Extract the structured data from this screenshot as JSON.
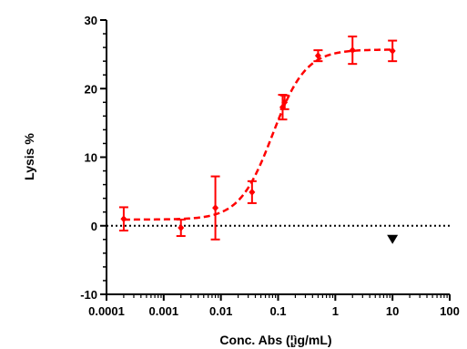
{
  "chart_data": {
    "type": "scatter",
    "xlabel": "Conc. Abs (¦̧ìg/mL)",
    "ylabel": "Lysis %",
    "x_scale": "log",
    "xlim": [
      0.0001,
      100
    ],
    "ylim": [
      -10,
      30
    ],
    "x_ticks": [
      {
        "value": 0.0001,
        "label": "0.0001"
      },
      {
        "value": 0.001,
        "label": "0.001"
      },
      {
        "value": 0.01,
        "label": "0.01"
      },
      {
        "value": 0.1,
        "label": "0.1"
      },
      {
        "value": 1,
        "label": "1"
      },
      {
        "value": 10,
        "label": "10"
      },
      {
        "value": 100,
        "label": "100"
      }
    ],
    "y_ticks": [
      {
        "value": -10,
        "label": "-10"
      },
      {
        "value": 0,
        "label": "0"
      },
      {
        "value": 10,
        "label": "10"
      },
      {
        "value": 20,
        "label": "20"
      },
      {
        "value": 30,
        "label": "30"
      }
    ],
    "grid": false,
    "legend": "none",
    "series": [
      {
        "color": "#ff0000",
        "marker": "diamond",
        "fit": "sigmoidal",
        "points": [
          {
            "x": 0.0002,
            "y": 1.0,
            "err": 1.7
          },
          {
            "x": 0.002,
            "y": -0.3,
            "err": 1.2
          },
          {
            "x": 0.008,
            "y": 2.6,
            "err": 4.6
          },
          {
            "x": 0.035,
            "y": 4.9,
            "err": 1.6
          },
          {
            "x": 0.12,
            "y": 17.3,
            "err": 1.8
          },
          {
            "x": 0.13,
            "y": 18.0,
            "err": 1.0
          },
          {
            "x": 0.5,
            "y": 24.8,
            "err": 0.8
          },
          {
            "x": 2.0,
            "y": 25.6,
            "err": 2.0
          },
          {
            "x": 10,
            "y": 25.5,
            "err": 1.5
          }
        ],
        "curve": {
          "bottom": 0.9,
          "top": 25.7,
          "ec50": 0.08,
          "hill": 1.5
        }
      },
      {
        "color": "#000000",
        "marker": "triangle-down",
        "points": [
          {
            "x": 10,
            "y": -2.0
          }
        ]
      }
    ],
    "reference_line": {
      "y": 0,
      "style": "dotted",
      "color": "#000000"
    }
  }
}
